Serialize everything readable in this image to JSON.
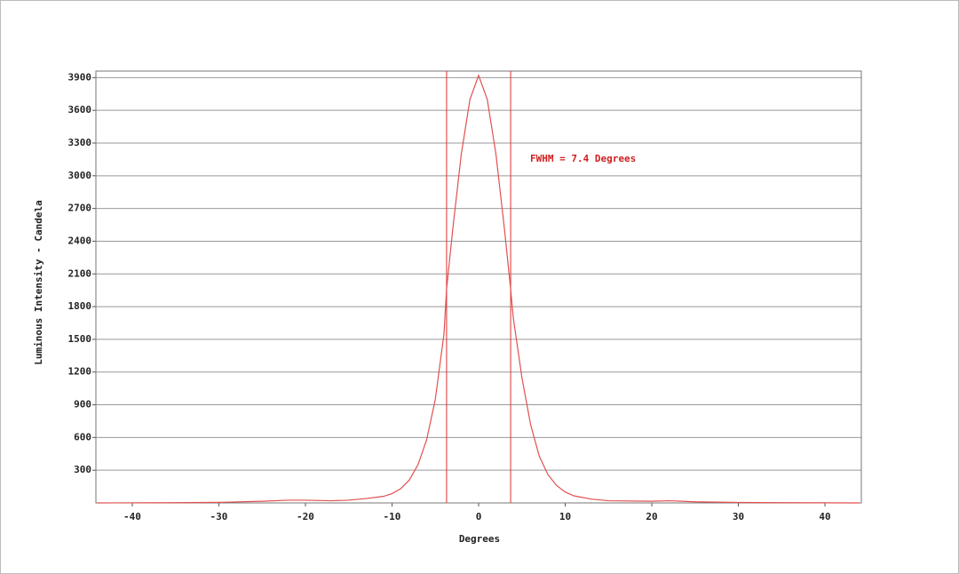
{
  "chart_data": {
    "type": "line",
    "xlabel": "Degrees",
    "ylabel": "Luminous Intensity - Candela",
    "annotation": "FWHM =  7.4 Degrees",
    "vlines": [
      -3.7,
      3.7
    ],
    "vline_color": "#e03030",
    "x": [
      -44,
      -35,
      -30,
      -25,
      -22,
      -20,
      -17,
      -15,
      -13,
      -11,
      -10,
      -9,
      -8,
      -7,
      -6,
      -5,
      -4,
      -3.7,
      -3,
      -2,
      -1,
      0,
      1,
      2,
      3,
      3.7,
      4,
      5,
      6,
      7,
      8,
      9,
      10,
      11,
      13,
      15,
      20,
      22,
      25,
      30,
      35,
      44
    ],
    "series": [
      {
        "color": "#e05050",
        "values": [
          0,
          2,
          5,
          15,
          25,
          25,
          20,
          25,
          40,
          60,
          85,
          130,
          210,
          350,
          580,
          950,
          1550,
          1960,
          2500,
          3200,
          3700,
          3920,
          3700,
          3200,
          2500,
          1960,
          1700,
          1150,
          720,
          430,
          260,
          160,
          100,
          65,
          35,
          20,
          15,
          20,
          10,
          4,
          2,
          0
        ]
      }
    ],
    "xlim": [
      -44.2,
      44.2
    ],
    "ylim": [
      0,
      3960
    ],
    "xticks": [
      -40,
      -30,
      -20,
      -10,
      0,
      10,
      20,
      30,
      40
    ],
    "yticks": [
      300,
      600,
      900,
      1200,
      1500,
      1800,
      2100,
      2400,
      2700,
      3000,
      3300,
      3600,
      3900
    ],
    "grid": true
  }
}
